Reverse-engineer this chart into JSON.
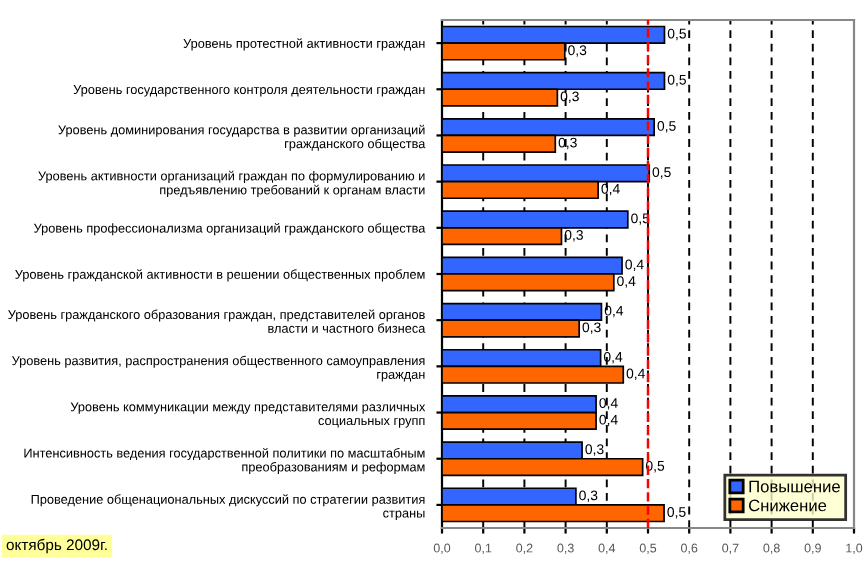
{
  "chart_data": {
    "type": "bar",
    "orientation": "horizontal",
    "categories": [
      "Уровень протестной активности граждан",
      "Уровень государственного контроля деятельности граждан",
      "Уровень доминирования государства в развитии организаций гражданского общества",
      "Уровень активности организаций граждан по формулированию и предъявлению требований к органам власти",
      "Уровень профессионализма организаций гражданского общества",
      "Уровень гражданской активности в решении общественных проблем",
      "Уровень гражданского образования граждан, представителей органов власти и частного бизнеса",
      "Уровень развития, распространения общественного самоуправления граждан",
      "Уровень коммуникации между представителями различных социальных групп",
      "Интенсивность ведения государственной политики по масштабным преобразованиям и реформам",
      "Проведение общенациональных дискуссий по стратегии развития страны"
    ],
    "series": [
      {
        "name": "Повышение",
        "color": "#3366ff",
        "values": [
          0.54,
          0.54,
          0.515,
          0.503,
          0.451,
          0.437,
          0.387,
          0.385,
          0.374,
          0.34,
          0.325
        ],
        "value_labels": [
          "0,5",
          "0,5",
          "0,5",
          "0,5",
          "0,5",
          "0,4",
          "0,4",
          "0,4",
          "0,4",
          "0,3",
          "0,3"
        ]
      },
      {
        "name": "Снижение",
        "color": "#ff6600",
        "values": [
          0.298,
          0.28,
          0.275,
          0.379,
          0.29,
          0.417,
          0.333,
          0.44,
          0.374,
          0.487,
          0.539
        ],
        "value_labels": [
          "0,3",
          "0,3",
          "0,3",
          "0,4",
          "0,3",
          "0,4",
          "0,3",
          "0,4",
          "0,4",
          "0,5",
          "0,5"
        ]
      }
    ],
    "xlim": [
      0,
      1
    ],
    "xticks": [
      {
        "value": 0,
        "label": "0,0"
      },
      {
        "value": 0.1,
        "label": "0,1"
      },
      {
        "value": 0.2,
        "label": "0,2"
      },
      {
        "value": 0.3,
        "label": "0,3"
      },
      {
        "value": 0.4,
        "label": "0,4"
      },
      {
        "value": 0.5,
        "label": "0,5"
      },
      {
        "value": 0.6,
        "label": "0,6"
      },
      {
        "value": 0.7,
        "label": "0,7"
      },
      {
        "value": 0.8,
        "label": "0,8"
      },
      {
        "value": 0.9,
        "label": "0,9"
      },
      {
        "value": 1,
        "label": "1,0"
      }
    ],
    "grid": "x",
    "legend": "bottom right",
    "ref_lines": [
      {
        "axis": "x",
        "value": 0.5,
        "color": "#ff0000",
        "line_style": "dashed"
      }
    ],
    "annotations": [
      "октябрь 2009г."
    ]
  }
}
